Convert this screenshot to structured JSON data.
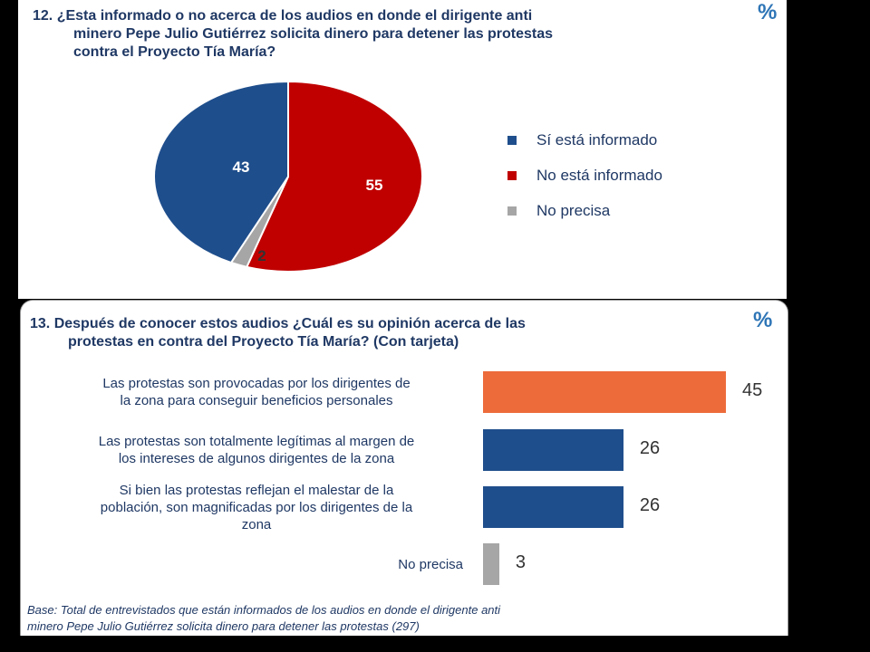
{
  "percent_mark": "%",
  "q12": {
    "title_line1": "12. ¿Esta informado o no acerca de los audios en donde el dirigente anti",
    "title_line2": "minero Pepe Julio Gutiérrez solicita dinero para detener las protestas",
    "title_line3": "contra el Proyecto Tía María?"
  },
  "q13": {
    "title_line1": "13. Después de conocer estos audios ¿Cuál es su opinión acerca de las",
    "title_line2": "protestas en contra del Proyecto Tía María? (Con tarjeta)"
  },
  "base_note_line1": "Base: Total de entrevistados que están informados de los audios en donde el dirigente anti",
  "base_note_line2": "minero Pepe Julio Gutiérrez solicita dinero para detener las protestas (297)",
  "chart_data": [
    {
      "type": "pie",
      "title": "",
      "legend_position": "right",
      "slices": [
        {
          "name": "Sí está informado",
          "value": 43,
          "color": "#1F4E8C"
        },
        {
          "name": "No está informado",
          "value": 55,
          "color": "#C00000"
        },
        {
          "name": "No precisa",
          "value": 2,
          "color": "#A6A6A6"
        }
      ]
    },
    {
      "type": "bar",
      "orientation": "horizontal",
      "title": "",
      "xlim": [
        0,
        45
      ],
      "categories": [
        [
          "Las protestas son provocadas por los dirigentes  de",
          "la zona para conseguir beneficios personales"
        ],
        [
          "Las protestas son totalmente legítimas al margen de",
          "los intereses de algunos dirigentes de la zona"
        ],
        [
          "Si bien las protestas reflejan el malestar de la",
          "población, son magnificadas por los dirigentes de la",
          "zona"
        ],
        [
          "No precisa"
        ]
      ],
      "values": [
        45,
        26,
        26,
        3
      ],
      "colors": [
        "#ED6B3B",
        "#1F4E8C",
        "#1F4E8C",
        "#A6A6A6"
      ]
    }
  ]
}
